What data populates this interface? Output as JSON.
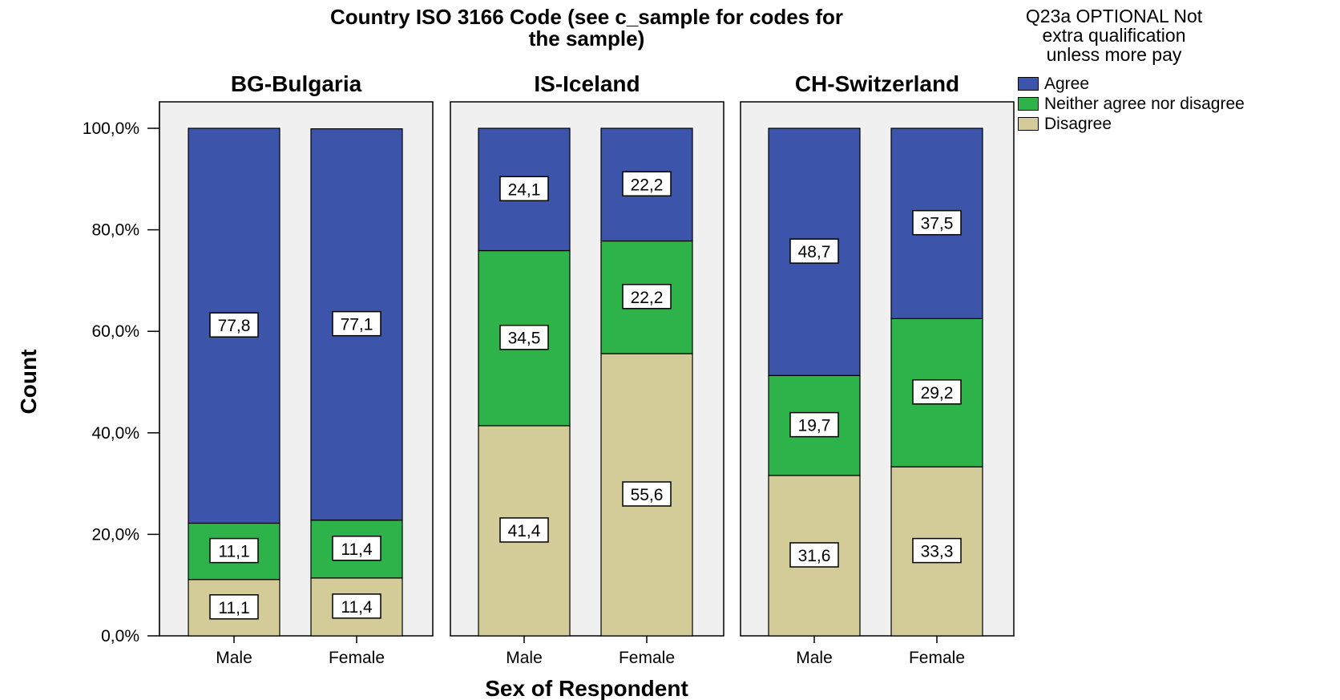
{
  "chart_data": {
    "type": "bar",
    "stacked": true,
    "title": "Country ISO 3166 Code (see c_sample for codes for the sample)",
    "xlabel": "Sex of Respondent",
    "ylabel": "Count",
    "ylim": [
      0,
      100
    ],
    "yticks": [
      "0,0%",
      "20,0%",
      "40,0%",
      "60,0%",
      "80,0%",
      "100,0%"
    ],
    "categories": [
      "Male",
      "Female"
    ],
    "legend": {
      "title": "Q23a OPTIONAL Not extra qualification unless more pay",
      "placement": "right"
    },
    "series": [
      {
        "name": "Agree",
        "color": "#3c55aa"
      },
      {
        "name": "Neither agree nor disagree",
        "color": "#2db34a"
      },
      {
        "name": "Disagree",
        "color": "#d3cb98"
      }
    ],
    "panels": [
      {
        "name": "BG-Bulgaria",
        "bars": [
          {
            "category": "Male",
            "labels": [
              "77,8",
              "11,1",
              "11,1"
            ],
            "values": [
              77.8,
              11.1,
              11.1
            ]
          },
          {
            "category": "Female",
            "labels": [
              "77,1",
              "11,4",
              "11,4"
            ],
            "values": [
              77.1,
              11.4,
              11.4
            ]
          }
        ]
      },
      {
        "name": "IS-Iceland",
        "bars": [
          {
            "category": "Male",
            "labels": [
              "24,1",
              "34,5",
              "41,4"
            ],
            "values": [
              24.1,
              34.5,
              41.4
            ]
          },
          {
            "category": "Female",
            "labels": [
              "22,2",
              "22,2",
              "55,6"
            ],
            "values": [
              22.2,
              22.2,
              55.6
            ]
          }
        ]
      },
      {
        "name": "CH-Switzerland",
        "bars": [
          {
            "category": "Male",
            "labels": [
              "48,7",
              "19,7",
              "31,6"
            ],
            "values": [
              48.7,
              19.7,
              31.6
            ]
          },
          {
            "category": "Female",
            "labels": [
              "37,5",
              "29,2",
              "33,3"
            ],
            "values": [
              37.5,
              29.2,
              33.3
            ]
          }
        ]
      }
    ]
  }
}
